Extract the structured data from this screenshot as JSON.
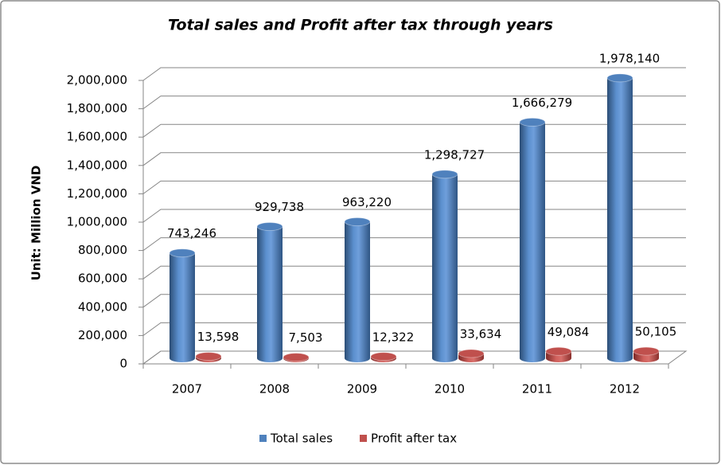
{
  "chart_data": {
    "type": "bar3d",
    "title": "Total sales and Profit after tax through years",
    "y_axis_label": "Unit: Million VND",
    "categories": [
      "2007",
      "2008",
      "2009",
      "2010",
      "2011",
      "2012"
    ],
    "series": [
      {
        "name": "Total sales",
        "color": "#4f81bd",
        "values": [
          743246,
          929738,
          963220,
          1298727,
          1666279,
          1978140
        ],
        "value_labels": [
          "743,246",
          "929,738",
          "963,220",
          "1,298,727",
          "1,666,279",
          "1,978,140"
        ]
      },
      {
        "name": "Profit after tax",
        "color": "#c0504d",
        "values": [
          13598,
          7503,
          12322,
          33634,
          49084,
          50105
        ],
        "value_labels": [
          "13,598",
          "7,503",
          "12,322",
          "33,634",
          "49,084",
          "50,105"
        ]
      }
    ],
    "ylim": [
      0,
      2000000
    ],
    "yticks": [
      0,
      {
        "value": 200000,
        "label": "200,000"
      },
      {
        "value": 400000,
        "label": "400,000"
      },
      {
        "value": 600000,
        "label": "600,000"
      },
      {
        "value": 800000,
        "label": "800,000"
      },
      {
        "value": 1000000,
        "label": "1,000,000"
      },
      {
        "value": 1200000,
        "label": "1,200,000"
      },
      {
        "value": 1400000,
        "label": "1,400,000"
      },
      {
        "value": 1600000,
        "label": "1,600,000"
      },
      {
        "value": 1800000,
        "label": "1,800,000"
      },
      {
        "value": 2000000,
        "label": "2,000,000"
      }
    ],
    "grid": true,
    "legend": "bottom"
  }
}
